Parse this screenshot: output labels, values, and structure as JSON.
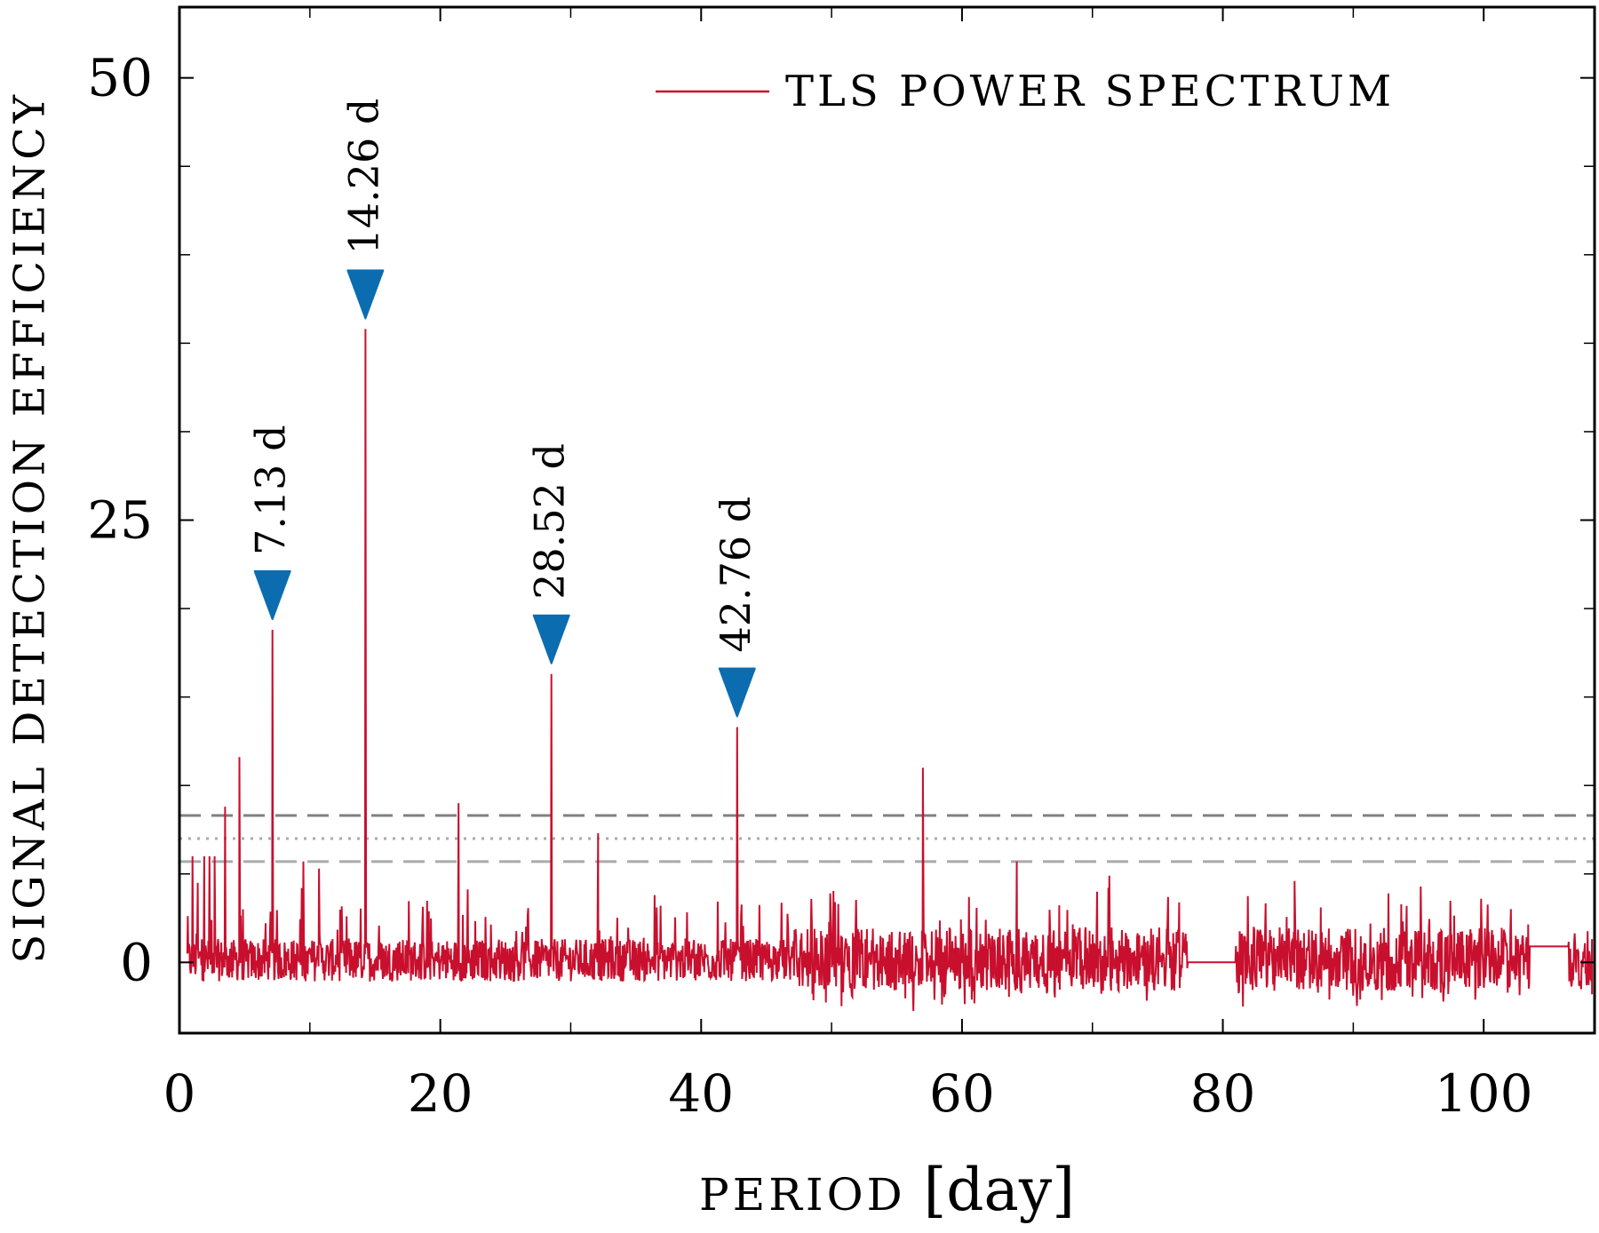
{
  "chart_data": {
    "type": "line",
    "xlabel": "PERIOD [day]",
    "ylabel": "SIGNAL DETECTION EFFICIENCY",
    "xlim": [
      0,
      108.5
    ],
    "ylim": [
      -4,
      54
    ],
    "x_ticks": [
      0,
      20,
      40,
      60,
      80,
      100
    ],
    "x_tick_labels": [
      "0",
      "20",
      "40",
      "60",
      "80",
      "100"
    ],
    "x_minor_ticks": [
      10,
      30,
      50,
      70,
      90
    ],
    "y_ticks": [
      0,
      25,
      50
    ],
    "y_tick_labels": [
      "0",
      "25",
      "50"
    ],
    "y_minor_ticks": [
      5,
      10,
      15,
      20,
      30,
      35,
      40,
      45
    ],
    "legend": {
      "label": "TLS POWER SPECTRUM",
      "position": "top-right"
    },
    "series": [
      {
        "name": "TLS POWER SPECTRUM",
        "color": "#c8102e",
        "peaks": [
          {
            "x": 1.0,
            "y": 6.0
          },
          {
            "x": 1.4,
            "y": 4.5
          },
          {
            "x": 1.9,
            "y": 6.0
          },
          {
            "x": 2.3,
            "y": 6.0
          },
          {
            "x": 2.7,
            "y": 6.0
          },
          {
            "x": 3.5,
            "y": 8.8
          },
          {
            "x": 4.6,
            "y": 11.6
          },
          {
            "x": 7.13,
            "y": 18.8
          },
          {
            "x": 9.5,
            "y": 5.7
          },
          {
            "x": 10.7,
            "y": 5.3
          },
          {
            "x": 14.26,
            "y": 35.8
          },
          {
            "x": 21.4,
            "y": 9.0
          },
          {
            "x": 28.52,
            "y": 16.3
          },
          {
            "x": 32.1,
            "y": 7.3
          },
          {
            "x": 42.76,
            "y": 13.3
          },
          {
            "x": 49.9,
            "y": 3.9
          },
          {
            "x": 57.0,
            "y": 11.0
          },
          {
            "x": 64.2,
            "y": 5.7
          },
          {
            "x": 71.3,
            "y": 4.9
          },
          {
            "x": 75.8,
            "y": 3.7
          },
          {
            "x": 85.5,
            "y": 4.6
          },
          {
            "x": 92.7,
            "y": 3.9
          },
          {
            "x": 99.8,
            "y": 3.6
          }
        ],
        "flat_segments": [
          {
            "x": [
              77.3,
              81.0
            ],
            "y": 0
          },
          {
            "x": [
              103.5,
              106.5
            ],
            "y": 0.9
          }
        ]
      }
    ],
    "threshold_lines": [
      {
        "y": 8.3,
        "style": "dashed",
        "color": "#808080"
      },
      {
        "y": 7.0,
        "style": "dotted",
        "color": "#aaaaaa"
      },
      {
        "y": 5.7,
        "style": "dashed",
        "color": "#aaaaaa"
      }
    ],
    "annotations": [
      {
        "x": 7.13,
        "y": 18.8,
        "label": "7.13 d",
        "marker": "down-triangle",
        "color": "#0b6db0"
      },
      {
        "x": 14.26,
        "y": 35.8,
        "label": "14.26 d",
        "marker": "down-triangle",
        "color": "#0b6db0"
      },
      {
        "x": 28.52,
        "y": 16.3,
        "label": "28.52 d",
        "marker": "down-triangle",
        "color": "#0b6db0"
      },
      {
        "x": 42.76,
        "y": 13.3,
        "label": "42.76 d",
        "marker": "down-triangle",
        "color": "#0b6db0"
      }
    ]
  }
}
